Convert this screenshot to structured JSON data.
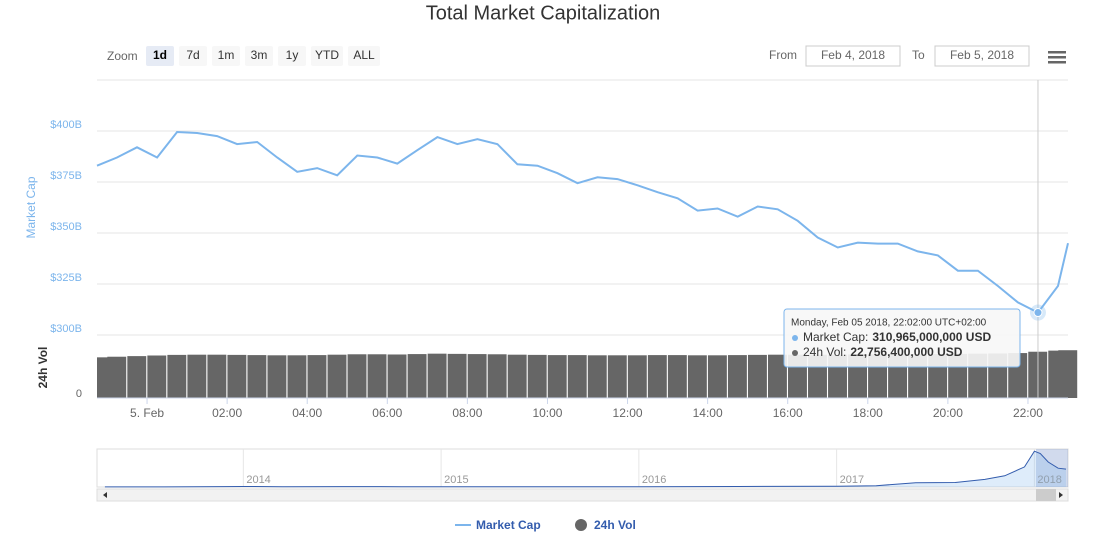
{
  "title": "Total Market Capitalization",
  "zoom": {
    "label": "Zoom",
    "buttons": [
      "1d",
      "7d",
      "1m",
      "3m",
      "1y",
      "YTD",
      "ALL"
    ]
  },
  "date_range": {
    "from_label": "From",
    "from": "Feb 4, 2018",
    "to_label": "To",
    "to": "Feb 5, 2018"
  },
  "tooltip": {
    "date": "Monday, Feb 05 2018, 22:02:00 UTC+02:00",
    "rows": [
      {
        "label": "Market Cap:",
        "value": "310,965,000,000 USD"
      },
      {
        "label": "24h Vol:",
        "value": "22,756,400,000 USD"
      }
    ]
  },
  "chart_data": [
    {
      "type": "line",
      "y_label": "Market Cap",
      "x": [
        -1.25,
        -0.75,
        -0.25,
        0.25,
        0.75,
        1.25,
        1.75,
        2.25,
        2.75,
        3.25,
        3.75,
        4.25,
        4.75,
        5.25,
        5.75,
        6.25,
        6.75,
        7.25,
        7.75,
        8.25,
        8.75,
        9.25,
        9.75,
        10.25,
        10.75,
        11.25,
        11.75,
        12.25,
        12.75,
        13.25,
        13.75,
        14.25,
        14.75,
        15.25,
        15.75,
        16.25,
        16.75,
        17.25,
        17.75,
        18.25,
        18.75,
        19.25,
        19.75,
        20.25,
        20.75,
        21.25,
        21.75,
        22.25,
        22.75,
        23
      ],
      "series": [
        {
          "name": "Market Cap",
          "color": "#7cb5ec",
          "values": [
            383,
            387,
            392,
            387,
            399.5,
            399,
            397.5,
            393.6,
            394.6,
            387,
            380,
            381.8,
            378.3,
            388,
            387,
            384,
            390.6,
            397,
            393.6,
            396,
            393.6,
            383.7,
            383,
            379.3,
            374.4,
            377.3,
            376.4,
            373.4,
            370,
            367,
            361,
            362,
            358,
            363,
            361.6,
            356,
            347.8,
            342.9,
            345.3,
            344.8,
            344.8,
            341,
            339,
            331.5,
            331.5,
            324,
            316,
            311,
            324,
            345
          ]
        }
      ],
      "xlim": [
        -1.25,
        23
      ],
      "xticks": [
        {
          "value": 0,
          "label": "5. Feb"
        },
        {
          "value": 2,
          "label": "02:00"
        },
        {
          "value": 4,
          "label": "04:00"
        },
        {
          "value": 6,
          "label": "06:00"
        },
        {
          "value": 8,
          "label": "08:00"
        },
        {
          "value": 10,
          "label": "10:00"
        },
        {
          "value": 12,
          "label": "12:00"
        },
        {
          "value": 14,
          "label": "14:00"
        },
        {
          "value": 16,
          "label": "16:00"
        },
        {
          "value": 18,
          "label": "18:00"
        },
        {
          "value": 20,
          "label": "20:00"
        },
        {
          "value": 22,
          "label": "22:00"
        }
      ],
      "ylim": [
        300,
        425
      ],
      "yticks": [
        {
          "value": 300,
          "label": "$300B"
        },
        {
          "value": 325,
          "label": "$325B"
        },
        {
          "value": 350,
          "label": "$350B"
        },
        {
          "value": 375,
          "label": "$375B"
        },
        {
          "value": 400,
          "label": "$400B"
        }
      ],
      "grid": true
    },
    {
      "type": "bar",
      "y_label": "24h Vol",
      "x": [
        -1.25,
        -0.75,
        -0.25,
        0.25,
        0.75,
        1.25,
        1.75,
        2.25,
        2.75,
        3.25,
        3.75,
        4.25,
        4.75,
        5.25,
        5.75,
        6.25,
        6.75,
        7.25,
        7.75,
        8.25,
        8.75,
        9.25,
        9.75,
        10.25,
        10.75,
        11.25,
        11.75,
        12.25,
        12.75,
        13.25,
        13.75,
        14.25,
        14.75,
        15.25,
        15.75,
        16.25,
        16.75,
        17.25,
        17.75,
        18.25,
        18.75,
        19.25,
        19.75,
        20.25,
        20.75,
        21.25,
        21.75,
        22.25,
        22.75,
        23
      ],
      "series": [
        {
          "name": "24h Vol",
          "color": "#666666",
          "values": [
            20000000000,
            20300000000,
            20600000000,
            20900000000,
            21200000000,
            21300000000,
            21300000000,
            21200000000,
            21100000000,
            21000000000,
            21000000000,
            21100000000,
            21300000000,
            21500000000,
            21500000000,
            21400000000,
            21600000000,
            21800000000,
            21700000000,
            21600000000,
            21500000000,
            21300000000,
            21200000000,
            21100000000,
            21100000000,
            21000000000,
            21000000000,
            21000000000,
            21100000000,
            21100000000,
            21000000000,
            21000000000,
            21100000000,
            21200000000,
            21300000000,
            21300000000,
            21300000000,
            21300000000,
            21400000000,
            21500000000,
            21600000000,
            21600000000,
            21600000000,
            21700000000,
            21800000000,
            21900000000,
            22100000000,
            22756400000,
            23300000000,
            23500000000
          ]
        }
      ],
      "xlim": [
        -1.25,
        23
      ],
      "ylim": [
        0,
        30000000000
      ],
      "yticks": [
        0
      ]
    },
    {
      "type": "area",
      "x": [
        2013.3,
        2013.6,
        2013.9,
        2014.0,
        2014.2,
        2014.5,
        2014.8,
        2015.0,
        2015.5,
        2016.0,
        2016.5,
        2017.0,
        2017.2,
        2017.4,
        2017.6,
        2017.75,
        2017.85,
        2017.95,
        2018.0,
        2018.03,
        2018.07,
        2018.12,
        2018.16
      ],
      "series": [
        {
          "name": "Market Cap",
          "color": "#335cad",
          "values": [
            1.5,
            1.5,
            8,
            11,
            7,
            8,
            6,
            5,
            4,
            7,
            11,
            18,
            28,
            95,
            100,
            170,
            250,
            450,
            800,
            750,
            560,
            420,
            400
          ]
        }
      ],
      "xlim": [
        2013.26,
        2018.17
      ],
      "ylim": [
        0,
        850
      ],
      "xticks": [
        2014,
        2015,
        2016,
        2017,
        2018
      ]
    }
  ]
}
